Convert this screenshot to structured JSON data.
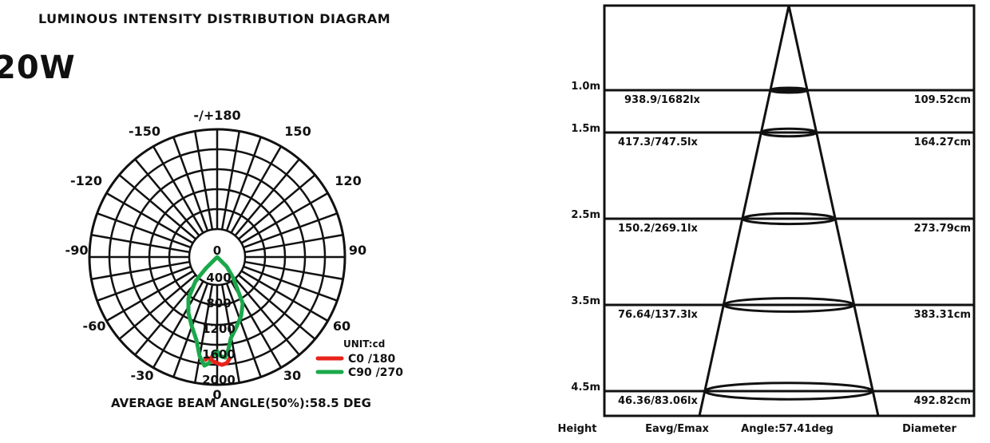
{
  "title": "LUMINOUS INTENSITY DISTRIBUTION DIAGRAM",
  "power": "20W",
  "polar": {
    "angle_labels": [
      "-/+180",
      "-150",
      "150",
      "-120",
      "120",
      "-90",
      "90",
      "-60",
      "60",
      "-30",
      "30",
      "0"
    ],
    "center_label": "0",
    "radial_labels": [
      "400",
      "800",
      "1200",
      "1600",
      "2000"
    ],
    "unit": "UNIT:cd",
    "legend": [
      {
        "label": "C0 /180",
        "color": "#e8231a"
      },
      {
        "label": "C90 /270",
        "color": "#1aa84a"
      }
    ],
    "beam_angle": "AVERAGE BEAM ANGLE(50%):58.5 DEG"
  },
  "cone": {
    "rows": [
      {
        "height": "1.0m",
        "lux": "938.9/1682lx",
        "diameter": "109.52cm"
      },
      {
        "height": "1.5m",
        "lux": "417.3/747.5lx",
        "diameter": "164.27cm"
      },
      {
        "height": "2.5m",
        "lux": "150.2/269.1lx",
        "diameter": "273.79cm"
      },
      {
        "height": "3.5m",
        "lux": "76.64/137.3lx",
        "diameter": "383.31cm"
      },
      {
        "height": "4.5m",
        "lux": "46.36/83.06lx",
        "diameter": "492.82cm"
      }
    ],
    "footer": {
      "height": "Height",
      "eavg": "Eavg/Emax",
      "angle": "Angle:57.41deg",
      "diameter": "Diameter"
    }
  }
}
